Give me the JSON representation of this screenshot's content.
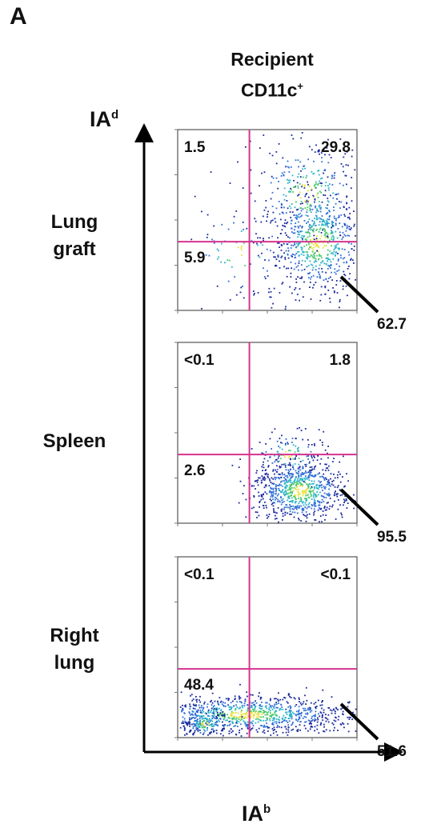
{
  "panel_letter": "A",
  "column_title": {
    "line1": "Recipient",
    "line2_base": "CD11c",
    "line2_sup": "+"
  },
  "y_axis_label": {
    "base": "IA",
    "sup": "d"
  },
  "x_axis_label": {
    "base": "IA",
    "sup": "b"
  },
  "chart_data": [
    {
      "type": "scatter",
      "row_label": [
        "Lung",
        "graft"
      ],
      "quadrants": {
        "upper_left": "1.5",
        "upper_right": "29.8",
        "lower_left": "5.9",
        "lower_right": "62.7"
      },
      "gate": {
        "x": 10,
        "y": 10
      },
      "axis_scale": "log"
    },
    {
      "type": "scatter",
      "row_label": [
        "Spleen"
      ],
      "quadrants": {
        "upper_left": "<0.1",
        "upper_right": "1.8",
        "lower_left": "2.6",
        "lower_right": "95.5"
      },
      "gate": {
        "x": 10,
        "y": 10
      },
      "axis_scale": "log"
    },
    {
      "type": "scatter",
      "row_label": [
        "Right",
        "lung"
      ],
      "quadrants": {
        "upper_left": "<0.1",
        "upper_right": "<0.1",
        "lower_left": "48.4",
        "lower_right": "51.6"
      },
      "gate": {
        "x": 10,
        "y": 10
      },
      "axis_scale": "log"
    }
  ],
  "colors": {
    "gate": "#d6338f",
    "axis": "#000000",
    "frame": "#555555",
    "density": [
      "#1a2a9e",
      "#2f6fd6",
      "#2ab3c9",
      "#48c86a",
      "#e8e23a"
    ]
  }
}
